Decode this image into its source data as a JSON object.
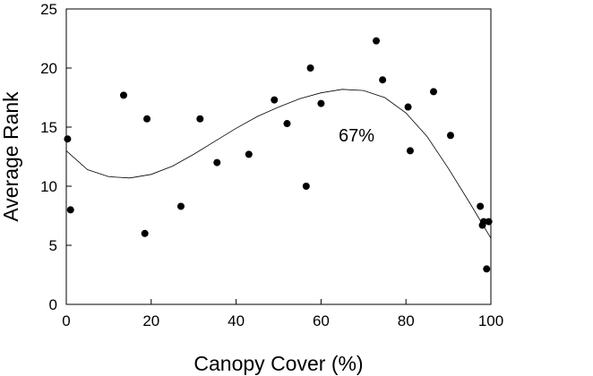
{
  "chart_data": {
    "type": "scatter",
    "title": "",
    "xlabel": "Canopy Cover (%)",
    "ylabel": "Average Rank",
    "xlim": [
      0,
      100
    ],
    "ylim": [
      0,
      25
    ],
    "x_ticks": [
      0,
      20,
      40,
      60,
      80,
      100
    ],
    "y_ticks": [
      0,
      5,
      10,
      15,
      20,
      25
    ],
    "x_tick_labels": [
      "0",
      "20",
      "40",
      "60",
      "80",
      "100"
    ],
    "y_tick_labels": [
      "0",
      "5",
      "10",
      "15",
      "20",
      "25"
    ],
    "grid": false,
    "legend": false,
    "annotation": "67%",
    "points": [
      {
        "x": 0.3,
        "y": 14
      },
      {
        "x": 1,
        "y": 8
      },
      {
        "x": 13.5,
        "y": 17.7
      },
      {
        "x": 18.5,
        "y": 6
      },
      {
        "x": 19,
        "y": 15.7
      },
      {
        "x": 27,
        "y": 8.3
      },
      {
        "x": 31.5,
        "y": 15.7
      },
      {
        "x": 35.5,
        "y": 12
      },
      {
        "x": 43,
        "y": 12.7
      },
      {
        "x": 49,
        "y": 17.3
      },
      {
        "x": 52,
        "y": 15.3
      },
      {
        "x": 56.5,
        "y": 10
      },
      {
        "x": 57.5,
        "y": 20
      },
      {
        "x": 60,
        "y": 17
      },
      {
        "x": 73,
        "y": 22.3
      },
      {
        "x": 74.5,
        "y": 19
      },
      {
        "x": 80.5,
        "y": 16.7
      },
      {
        "x": 81,
        "y": 13
      },
      {
        "x": 86.5,
        "y": 18
      },
      {
        "x": 90.5,
        "y": 14.3
      },
      {
        "x": 97.5,
        "y": 8.3
      },
      {
        "x": 98,
        "y": 6.7
      },
      {
        "x": 98.3,
        "y": 7
      },
      {
        "x": 99,
        "y": 3
      },
      {
        "x": 99.5,
        "y": 7
      }
    ],
    "fit_curve": {
      "type": "polynomial",
      "degree": 3,
      "points": [
        {
          "x": 0,
          "y": 13.0
        },
        {
          "x": 5,
          "y": 11.4
        },
        {
          "x": 10,
          "y": 10.8
        },
        {
          "x": 15,
          "y": 10.7
        },
        {
          "x": 20,
          "y": 11.0
        },
        {
          "x": 25,
          "y": 11.7
        },
        {
          "x": 30,
          "y": 12.7
        },
        {
          "x": 35,
          "y": 13.8
        },
        {
          "x": 40,
          "y": 14.9
        },
        {
          "x": 45,
          "y": 15.9
        },
        {
          "x": 50,
          "y": 16.7
        },
        {
          "x": 55,
          "y": 17.4
        },
        {
          "x": 60,
          "y": 17.9
        },
        {
          "x": 65,
          "y": 18.2
        },
        {
          "x": 70,
          "y": 18.1
        },
        {
          "x": 75,
          "y": 17.5
        },
        {
          "x": 80,
          "y": 16.2
        },
        {
          "x": 85,
          "y": 14.2
        },
        {
          "x": 90,
          "y": 11.5
        },
        {
          "x": 95,
          "y": 8.6
        },
        {
          "x": 100,
          "y": 5.6
        }
      ]
    }
  },
  "style": {
    "marker_color": "#000000",
    "line_color": "#000000",
    "background": "#ffffff"
  }
}
